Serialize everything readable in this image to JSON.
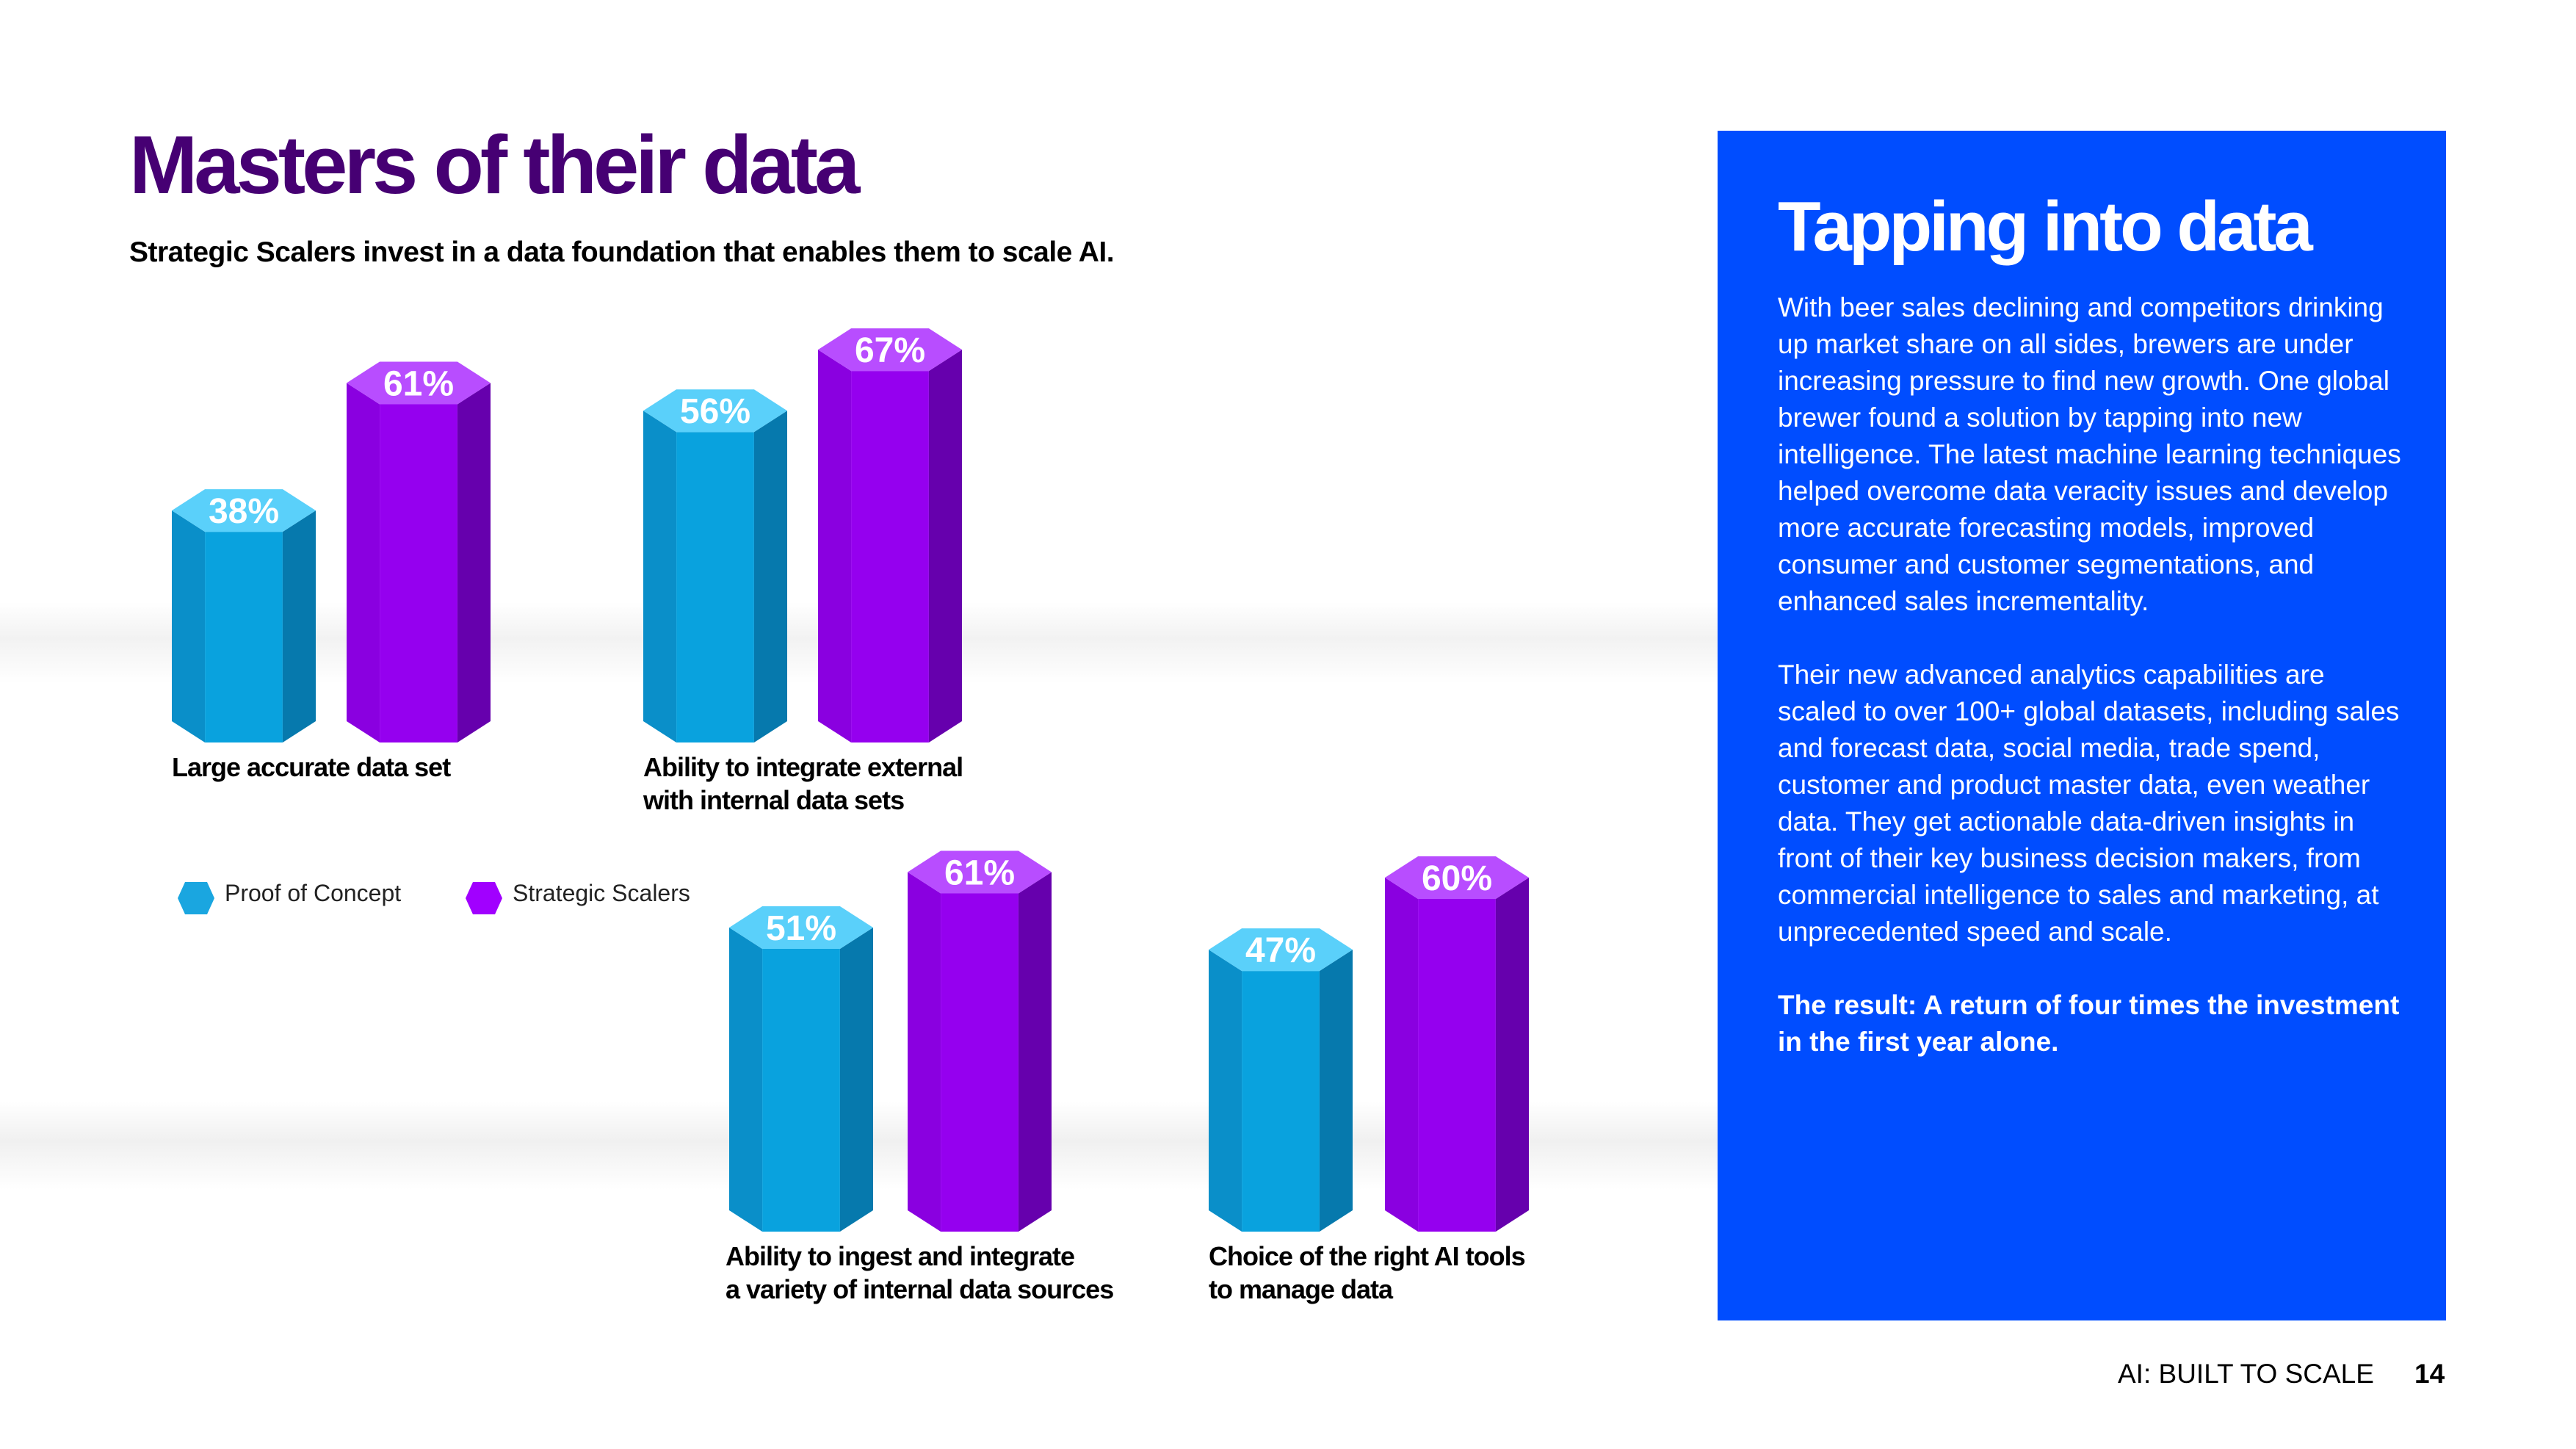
{
  "header": {
    "title": "Masters of their data",
    "subtitle": "Strategic Scalers invest in a data foundation that enables them to scale AI."
  },
  "legend": [
    {
      "label": "Proof of Concept",
      "color": "#1aa6e0"
    },
    {
      "label": "Strategic Scalers",
      "color": "#a100ff"
    }
  ],
  "chart_data": [
    {
      "type": "bar",
      "categories": [
        "Large accurate data set"
      ],
      "label_lines": [
        "Large accurate data set"
      ],
      "series": [
        {
          "name": "Proof of Concept",
          "values": [
            38
          ],
          "labels": [
            "38%"
          ]
        },
        {
          "name": "Strategic Scalers",
          "values": [
            61
          ],
          "labels": [
            "61%"
          ]
        }
      ],
      "unit": "%"
    },
    {
      "type": "bar",
      "categories": [
        "Ability to integrate external with internal data sets"
      ],
      "label_lines": [
        "Ability to integrate external",
        "with internal data sets"
      ],
      "series": [
        {
          "name": "Proof of Concept",
          "values": [
            56
          ],
          "labels": [
            "56%"
          ]
        },
        {
          "name": "Strategic Scalers",
          "values": [
            67
          ],
          "labels": [
            "67%"
          ]
        }
      ],
      "unit": "%"
    },
    {
      "type": "bar",
      "categories": [
        "Ability to ingest and integrate a variety of internal data sources"
      ],
      "label_lines": [
        "Ability to ingest and integrate",
        "a variety of internal data sources"
      ],
      "series": [
        {
          "name": "Proof of Concept",
          "values": [
            51
          ],
          "labels": [
            "51%"
          ]
        },
        {
          "name": "Strategic Scalers",
          "values": [
            61
          ],
          "labels": [
            "61%"
          ]
        }
      ],
      "unit": "%"
    },
    {
      "type": "bar",
      "categories": [
        "Choice of the right AI tools to manage data"
      ],
      "label_lines": [
        "Choice of the right AI tools",
        "to manage data"
      ],
      "series": [
        {
          "name": "Proof of Concept",
          "values": [
            47
          ],
          "labels": [
            "47%"
          ]
        },
        {
          "name": "Strategic Scalers",
          "values": [
            60
          ],
          "labels": [
            "60%"
          ]
        }
      ],
      "unit": "%"
    }
  ],
  "side_panel": {
    "title": "Tapping into data",
    "paragraph_1": "With beer sales declining and competitors drinking up market share on all sides, brewers are under increasing pressure to find new growth. One global brewer found a solution by tapping into new intelligence. The latest machine learning techniques helped overcome data veracity issues and develop more accurate forecasting models, improved consumer and customer segmentations, and enhanced sales incrementality.",
    "paragraph_2": "Their new advanced analytics capabilities are scaled to over 100+ global datasets, including sales and forecast data, social media, trade spend, customer and product master data, even weather data. They get actionable data-driven insights in front of their key business decision makers, from commercial intelligence to sales and marketing, at unprecedented speed and scale.",
    "result": "The result: A return of four times the investment in the first year alone.",
    "background": "#004dff"
  },
  "footer": {
    "title": "AI: BUILT TO SCALE",
    "page_number": "14"
  }
}
